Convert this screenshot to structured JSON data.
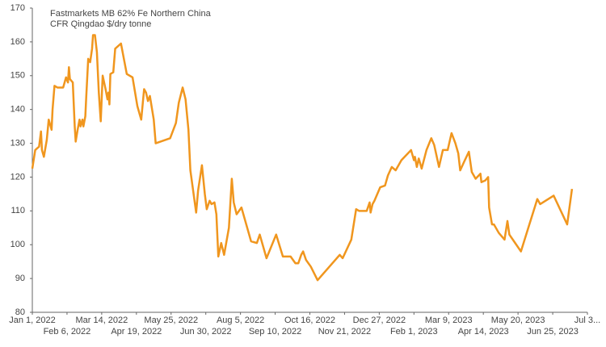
{
  "chart_data": {
    "type": "line",
    "title": "Fastmarkets MB 62% Fe Northern China",
    "subtitle": "CFR Qingdao $/dry tonne",
    "color": "#f0961e",
    "grid": false,
    "xlim": [
      "2022-01-01",
      "2023-07-31"
    ],
    "xticks": [
      {
        "value": "2022-01-01",
        "label": "Jan 1, 2022"
      },
      {
        "value": "2022-02-06",
        "label": "Feb 6, 2022"
      },
      {
        "value": "2022-03-14",
        "label": "Mar 14, 2022"
      },
      {
        "value": "2022-04-19",
        "label": "Apr 19, 2022"
      },
      {
        "value": "2022-05-25",
        "label": "May 25, 2022"
      },
      {
        "value": "2022-06-30",
        "label": "Jun 30, 2022"
      },
      {
        "value": "2022-08-05",
        "label": "Aug 5, 2022"
      },
      {
        "value": "2022-09-10",
        "label": "Sep 10, 2022"
      },
      {
        "value": "2022-10-16",
        "label": "Oct 16, 2022"
      },
      {
        "value": "2022-11-21",
        "label": "Nov 21, 2022"
      },
      {
        "value": "2022-12-27",
        "label": "Dec 27, 2022"
      },
      {
        "value": "2023-02-01",
        "label": "Feb 1, 2023"
      },
      {
        "value": "2023-03-09",
        "label": "Mar 9, 2023"
      },
      {
        "value": "2023-04-14",
        "label": "Apr 14, 2023"
      },
      {
        "value": "2023-05-20",
        "label": "May 20, 2023"
      },
      {
        "value": "2023-06-25",
        "label": "Jun 25, 2023"
      },
      {
        "value": "2023-07-31",
        "label": "Jul 3..."
      }
    ],
    "ylim": [
      80,
      170
    ],
    "yticks": [
      80,
      90,
      100,
      110,
      120,
      130,
      140,
      150,
      160,
      170
    ],
    "x": [
      "2022-01-01",
      "2022-01-04",
      "2022-01-08",
      "2022-01-10",
      "2022-01-11",
      "2022-01-13",
      "2022-01-16",
      "2022-01-18",
      "2022-01-21",
      "2022-01-22",
      "2022-01-24",
      "2022-01-27",
      "2022-02-02",
      "2022-02-05",
      "2022-02-07",
      "2022-02-08",
      "2022-02-09",
      "2022-02-12",
      "2022-02-14",
      "2022-02-15",
      "2022-02-17",
      "2022-02-19",
      "2022-02-20",
      "2022-02-22",
      "2022-02-23",
      "2022-02-25",
      "2022-02-26",
      "2022-02-28",
      "2022-03-02",
      "2022-03-04",
      "2022-03-05",
      "2022-03-07",
      "2022-03-09",
      "2022-03-11",
      "2022-03-13",
      "2022-03-15",
      "2022-03-18",
      "2022-03-20",
      "2022-03-21",
      "2022-03-22",
      "2022-03-23",
      "2022-03-26",
      "2022-03-28",
      "2022-04-03",
      "2022-04-09",
      "2022-04-15",
      "2022-04-20",
      "2022-04-24",
      "2022-04-27",
      "2022-04-29",
      "2022-05-01",
      "2022-05-03",
      "2022-05-07",
      "2022-05-09",
      "2022-05-24",
      "2022-05-30",
      "2022-06-02",
      "2022-06-06",
      "2022-06-09",
      "2022-06-12",
      "2022-06-14",
      "2022-06-20",
      "2022-06-22",
      "2022-06-26",
      "2022-06-29",
      "2022-07-01",
      "2022-07-04",
      "2022-07-06",
      "2022-07-09",
      "2022-07-11",
      "2022-07-13",
      "2022-07-16",
      "2022-07-19",
      "2022-07-24",
      "2022-07-27",
      "2022-07-29",
      "2022-08-01",
      "2022-08-06",
      "2022-08-16",
      "2022-08-22",
      "2022-08-25",
      "2022-09-01",
      "2022-09-11",
      "2022-09-18",
      "2022-09-26",
      "2022-10-01",
      "2022-10-04",
      "2022-10-07",
      "2022-10-09",
      "2022-10-12",
      "2022-10-17",
      "2022-10-24",
      "2022-11-16",
      "2022-11-19",
      "2022-11-28",
      "2022-12-03",
      "2022-12-06",
      "2022-12-14",
      "2022-12-17",
      "2022-12-18",
      "2022-12-20",
      "2022-12-22",
      "2022-12-28",
      "2023-01-02",
      "2023-01-05",
      "2023-01-09",
      "2023-01-13",
      "2023-01-19",
      "2023-01-29",
      "2023-02-01",
      "2023-02-02",
      "2023-02-04",
      "2023-02-06",
      "2023-02-09",
      "2023-02-14",
      "2023-02-19",
      "2023-02-22",
      "2023-02-27",
      "2023-03-03",
      "2023-03-08",
      "2023-03-12",
      "2023-03-16",
      "2023-03-19",
      "2023-03-21",
      "2023-03-25",
      "2023-03-30",
      "2023-04-02",
      "2023-04-06",
      "2023-04-11",
      "2023-04-12",
      "2023-04-16",
      "2023-04-19",
      "2023-04-20",
      "2023-04-23",
      "2023-04-25",
      "2023-04-30",
      "2023-05-06",
      "2023-05-09",
      "2023-05-11",
      "2023-05-17",
      "2023-05-23",
      "2023-06-09",
      "2023-06-12",
      "2023-06-26",
      "2023-07-10",
      "2023-07-15"
    ],
    "values": [
      122.5,
      128,
      129,
      133.5,
      128,
      126,
      131,
      137,
      134,
      140,
      147,
      146.5,
      146.5,
      149.5,
      148,
      152.5,
      149,
      148,
      135,
      130.5,
      134,
      137,
      135,
      137,
      135,
      138,
      144,
      155,
      154,
      158,
      162,
      162,
      157,
      145,
      136.5,
      150,
      146,
      143,
      145,
      141.5,
      150.5,
      151,
      158,
      159.5,
      150.5,
      149.5,
      141,
      137,
      146,
      145,
      142.5,
      144,
      137,
      130,
      131.5,
      136,
      142,
      146.5,
      143,
      134,
      122,
      109.5,
      116,
      123.5,
      115,
      110.5,
      113,
      112,
      112.5,
      109,
      96.5,
      100.5,
      97,
      105,
      119.5,
      112.5,
      109,
      111,
      101,
      100.5,
      103,
      96,
      103,
      96.5,
      96.5,
      94.5,
      94.5,
      97,
      98,
      95.5,
      93.5,
      89.5,
      97,
      96,
      101.5,
      110.5,
      110,
      110,
      112.5,
      109.5,
      112,
      113,
      117,
      117.5,
      120.5,
      123,
      122,
      125,
      128,
      125,
      126,
      123,
      125.5,
      122.5,
      128,
      131.5,
      129.5,
      123,
      128,
      128,
      133,
      130,
      127,
      122,
      124.5,
      127.5,
      121.5,
      119.5,
      121,
      118.5,
      119,
      120,
      111,
      106,
      106,
      103.5,
      101.5,
      107,
      103,
      100.5,
      98,
      113.5,
      112,
      114.5,
      106,
      116.5
    ]
  }
}
